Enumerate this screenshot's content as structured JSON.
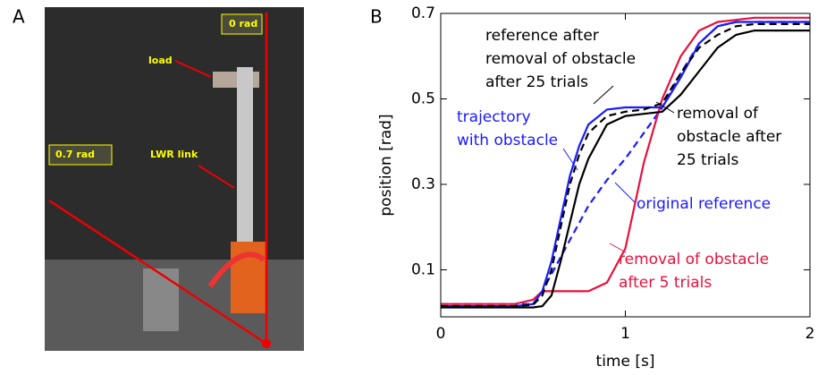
{
  "panels": [
    "A",
    "B"
  ],
  "photo": {
    "labels": [
      "0 rad",
      "load",
      "0.7  rad",
      "LWR link"
    ]
  },
  "chart_data": {
    "type": "line",
    "xlabel": "time [s]",
    "ylabel": "position [rad]",
    "xlim": [
      0,
      2
    ],
    "xticks": [
      0,
      1,
      2
    ],
    "ylim": [
      -0.01,
      0.7
    ],
    "yticks": [
      0.1,
      0.3,
      0.5,
      0.7
    ],
    "x": [
      0,
      0.1,
      0.2,
      0.3,
      0.4,
      0.5,
      0.55,
      0.6,
      0.65,
      0.7,
      0.75,
      0.8,
      0.9,
      1.0,
      1.1,
      1.2,
      1.3,
      1.4,
      1.5,
      1.6,
      1.7,
      1.8,
      1.9,
      2.0
    ],
    "series": [
      {
        "color": "#1a1aff",
        "dash": true,
        "values": [
          0.02,
          0.02,
          0.02,
          0.02,
          0.02,
          0.02,
          0.05,
          0.09,
          0.13,
          0.17,
          0.21,
          0.25,
          0.31,
          0.36,
          0.42,
          0.48,
          0.56,
          0.63,
          0.67,
          0.68,
          0.68,
          0.68,
          0.68,
          0.68
        ]
      },
      {
        "color": "#e8103c",
        "dash": false,
        "values": [
          0.02,
          0.02,
          0.02,
          0.02,
          0.02,
          0.03,
          0.05,
          0.05,
          0.05,
          0.05,
          0.05,
          0.05,
          0.07,
          0.15,
          0.35,
          0.5,
          0.6,
          0.66,
          0.68,
          0.685,
          0.69,
          0.69,
          0.69,
          0.69
        ]
      },
      {
        "color": "#1a1aff",
        "dash": false,
        "values": [
          0.015,
          0.015,
          0.015,
          0.015,
          0.015,
          0.02,
          0.05,
          0.12,
          0.22,
          0.32,
          0.39,
          0.44,
          0.475,
          0.48,
          0.48,
          0.48,
          0.55,
          0.63,
          0.67,
          0.68,
          0.68,
          0.68,
          0.68,
          0.68
        ]
      },
      {
        "color": "#000000",
        "dash": true,
        "values": [
          0.015,
          0.015,
          0.015,
          0.015,
          0.015,
          0.018,
          0.04,
          0.1,
          0.2,
          0.3,
          0.37,
          0.42,
          0.46,
          0.47,
          0.475,
          0.49,
          0.56,
          0.62,
          0.65,
          0.67,
          0.675,
          0.675,
          0.675,
          0.675
        ]
      },
      {
        "color": "#000000",
        "dash": false,
        "values": [
          0.012,
          0.012,
          0.012,
          0.012,
          0.012,
          0.012,
          0.015,
          0.04,
          0.12,
          0.21,
          0.3,
          0.36,
          0.44,
          0.46,
          0.465,
          0.47,
          0.51,
          0.565,
          0.62,
          0.65,
          0.66,
          0.66,
          0.66,
          0.66
        ]
      }
    ],
    "annotations": [
      {
        "color": "#000000",
        "lines": [
          "reference after",
          "removal of obstacle",
          "after 25 trials"
        ]
      },
      {
        "color": "#1a1aff",
        "lines": [
          "trajectory",
          "with obstacle"
        ]
      },
      {
        "color": "#000000",
        "lines": [
          "removal of",
          "obstacle after",
          "25 trials"
        ]
      },
      {
        "color": "#1a1aff",
        "lines": [
          "original reference"
        ]
      },
      {
        "color": "#e8103c",
        "lines": [
          "removal of obstacle",
          "after 5 trials"
        ]
      }
    ]
  }
}
